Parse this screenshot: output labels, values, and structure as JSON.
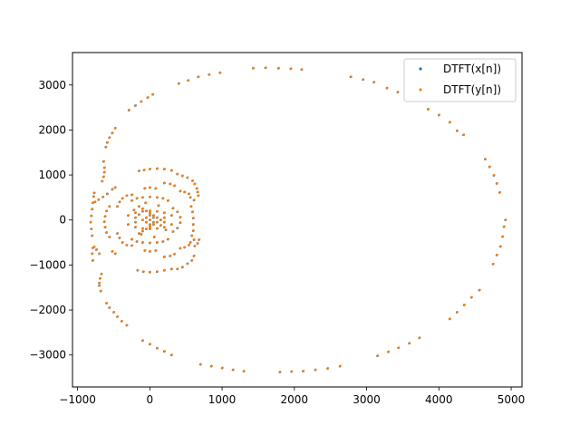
{
  "chart_data": {
    "type": "scatter",
    "title": "",
    "xlabel": "",
    "ylabel": "",
    "xlim": [
      -1070,
      5150
    ],
    "ylim": [
      -3710,
      3720
    ],
    "xticks": [
      -1000,
      0,
      1000,
      2000,
      3000,
      4000,
      5000
    ],
    "yticks": [
      -3000,
      -2000,
      -1000,
      0,
      1000,
      2000,
      3000
    ],
    "grid": false,
    "legend_position": "top-right",
    "series": [
      {
        "name": "DTFT(x[n])",
        "color": "#1f77b4",
        "points": [
          [
            1430,
            3370
          ],
          [
            1600,
            3380
          ],
          [
            1780,
            3370
          ],
          [
            1950,
            3360
          ],
          [
            2100,
            3340
          ],
          [
            2780,
            3180
          ],
          [
            2950,
            3120
          ],
          [
            3100,
            3060
          ],
          [
            3280,
            2930
          ],
          [
            3430,
            2840
          ],
          [
            3850,
            2460
          ],
          [
            4000,
            2330
          ],
          [
            4150,
            2170
          ],
          [
            4250,
            1980
          ],
          [
            4340,
            1890
          ],
          [
            4640,
            1350
          ],
          [
            4700,
            1180
          ],
          [
            4760,
            990
          ],
          [
            4800,
            810
          ],
          [
            4840,
            610
          ],
          [
            4920,
            0
          ],
          [
            4900,
            -150
          ],
          [
            4880,
            -370
          ],
          [
            4850,
            -590
          ],
          [
            4800,
            -780
          ],
          [
            4750,
            -980
          ],
          [
            4560,
            -1560
          ],
          [
            4450,
            -1720
          ],
          [
            4350,
            -1890
          ],
          [
            4250,
            -2050
          ],
          [
            4150,
            -2200
          ],
          [
            3730,
            -2620
          ],
          [
            3590,
            -2740
          ],
          [
            3440,
            -2840
          ],
          [
            3300,
            -2930
          ],
          [
            3150,
            -3020
          ],
          [
            2630,
            -3250
          ],
          [
            2460,
            -3300
          ],
          [
            2290,
            -3330
          ],
          [
            2120,
            -3360
          ],
          [
            1960,
            -3370
          ],
          [
            1800,
            -3380
          ],
          [
            1300,
            -3360
          ],
          [
            1150,
            -3330
          ],
          [
            1000,
            -3290
          ],
          [
            850,
            -3250
          ],
          [
            700,
            -3210
          ],
          [
            300,
            -3000
          ],
          [
            200,
            -2920
          ],
          [
            100,
            -2850
          ],
          [
            0,
            -2760
          ],
          [
            -100,
            -2680
          ],
          [
            -320,
            -2340
          ],
          [
            -390,
            -2250
          ],
          [
            -450,
            -2150
          ],
          [
            -500,
            -2050
          ],
          [
            -560,
            -1950
          ],
          [
            -600,
            -1850
          ],
          [
            -680,
            -1580
          ],
          [
            -700,
            -1460
          ],
          [
            -700,
            -1400
          ],
          [
            -690,
            -1300
          ],
          [
            -670,
            -1200
          ],
          [
            -790,
            -900
          ],
          [
            -800,
            -750
          ],
          [
            -790,
            -620
          ],
          [
            -770,
            -600
          ],
          [
            -740,
            -660
          ],
          [
            -700,
            -750
          ],
          [
            -800,
            -350
          ],
          [
            -810,
            -200
          ],
          [
            -820,
            -50
          ],
          [
            -810,
            90
          ],
          [
            -800,
            240
          ],
          [
            -790,
            380
          ],
          [
            -780,
            520
          ],
          [
            -770,
            600
          ],
          [
            -760,
            400
          ],
          [
            -710,
            450
          ],
          [
            -650,
            510
          ],
          [
            -590,
            580
          ],
          [
            -660,
            860
          ],
          [
            -640,
            960
          ],
          [
            -630,
            1060
          ],
          [
            -630,
            1160
          ],
          [
            -640,
            1300
          ],
          [
            -610,
            1620
          ],
          [
            -590,
            1720
          ],
          [
            -560,
            1830
          ],
          [
            -520,
            1930
          ],
          [
            -480,
            2040
          ],
          [
            -290,
            2440
          ],
          [
            -200,
            2540
          ],
          [
            -120,
            2630
          ],
          [
            -30,
            2720
          ],
          [
            40,
            2790
          ],
          [
            400,
            3030
          ],
          [
            530,
            3100
          ],
          [
            670,
            3180
          ],
          [
            820,
            3230
          ],
          [
            970,
            3270
          ],
          [
            -150,
            1090
          ],
          [
            -80,
            1110
          ],
          [
            0,
            1130
          ],
          [
            100,
            1140
          ],
          [
            200,
            1130
          ],
          [
            300,
            1100
          ],
          [
            -170,
            -1120
          ],
          [
            -90,
            -1150
          ],
          [
            0,
            -1160
          ],
          [
            100,
            -1150
          ],
          [
            200,
            -1120
          ],
          [
            300,
            -1090
          ],
          [
            380,
            -1090
          ],
          [
            450,
            -1050
          ],
          [
            520,
            -970
          ],
          [
            580,
            -900
          ],
          [
            610,
            -800
          ],
          [
            380,
            1020
          ],
          [
            450,
            980
          ],
          [
            520,
            940
          ],
          [
            590,
            870
          ],
          [
            620,
            800
          ],
          [
            -450,
            -300
          ],
          [
            -420,
            -400
          ],
          [
            -380,
            -500
          ],
          [
            -320,
            -560
          ],
          [
            -250,
            -570
          ],
          [
            -450,
            300
          ],
          [
            -420,
            400
          ],
          [
            -380,
            480
          ],
          [
            -320,
            540
          ],
          [
            -250,
            560
          ],
          [
            -560,
            -380
          ],
          [
            -600,
            -280
          ],
          [
            -620,
            -160
          ],
          [
            -630,
            -40
          ],
          [
            -620,
            80
          ],
          [
            -600,
            200
          ],
          [
            -560,
            300
          ],
          [
            -300,
            100
          ],
          [
            -200,
            160
          ],
          [
            -100,
            190
          ],
          [
            0,
            200
          ],
          [
            100,
            190
          ],
          [
            200,
            160
          ],
          [
            300,
            100
          ],
          [
            -300,
            -100
          ],
          [
            -200,
            -160
          ],
          [
            -100,
            -190
          ],
          [
            0,
            -200
          ],
          [
            100,
            -190
          ],
          [
            200,
            -160
          ],
          [
            300,
            -100
          ],
          [
            -250,
            430
          ],
          [
            -180,
            480
          ],
          [
            -100,
            500
          ],
          [
            0,
            510
          ],
          [
            100,
            500
          ],
          [
            180,
            480
          ],
          [
            250,
            430
          ],
          [
            -250,
            -430
          ],
          [
            -180,
            -480
          ],
          [
            -100,
            -500
          ],
          [
            0,
            -510
          ],
          [
            100,
            -500
          ],
          [
            180,
            -480
          ],
          [
            250,
            -430
          ],
          [
            -150,
            -300
          ],
          [
            -100,
            -250
          ],
          [
            -50,
            -200
          ],
          [
            0,
            -150
          ],
          [
            50,
            -100
          ],
          [
            100,
            -50
          ],
          [
            150,
            0
          ],
          [
            -150,
            300
          ],
          [
            -100,
            250
          ],
          [
            -50,
            200
          ],
          [
            0,
            150
          ],
          [
            50,
            100
          ],
          [
            100,
            50
          ],
          [
            -100,
            0
          ],
          [
            -50,
            50
          ],
          [
            -50,
            -50
          ],
          [
            0,
            0
          ],
          [
            50,
            -50
          ],
          [
            50,
            50
          ],
          [
            0,
            100
          ],
          [
            0,
            -100
          ],
          [
            -200,
            -50
          ],
          [
            -200,
            50
          ],
          [
            200,
            -50
          ],
          [
            200,
            50
          ],
          [
            -150,
            120
          ],
          [
            150,
            -120
          ],
          [
            -120,
            -320
          ],
          [
            120,
            320
          ],
          [
            -220,
            220
          ],
          [
            220,
            -220
          ],
          [
            -60,
            380
          ],
          [
            60,
            -380
          ],
          [
            320,
            -260
          ],
          [
            380,
            -180
          ],
          [
            420,
            -60
          ],
          [
            420,
            60
          ],
          [
            380,
            180
          ],
          [
            320,
            260
          ],
          [
            580,
            -350
          ],
          [
            600,
            -240
          ],
          [
            600,
            -100
          ],
          [
            600,
            40
          ],
          [
            590,
            180
          ],
          [
            570,
            300
          ],
          [
            620,
            -580
          ],
          [
            660,
            -520
          ],
          [
            680,
            -440
          ],
          [
            670,
            540
          ],
          [
            660,
            620
          ],
          [
            650,
            700
          ],
          [
            420,
            -630
          ],
          [
            480,
            -610
          ],
          [
            540,
            -560
          ],
          [
            420,
            640
          ],
          [
            480,
            620
          ],
          [
            540,
            580
          ],
          [
            -70,
            -680
          ],
          [
            0,
            -700
          ],
          [
            80,
            -680
          ],
          [
            -70,
            700
          ],
          [
            0,
            720
          ],
          [
            80,
            700
          ],
          [
            200,
            -820
          ],
          [
            280,
            -800
          ],
          [
            340,
            -760
          ],
          [
            200,
            820
          ],
          [
            280,
            800
          ],
          [
            340,
            760
          ],
          [
            -480,
            -750
          ],
          [
            -520,
            -700
          ],
          [
            -480,
            720
          ],
          [
            -520,
            680
          ],
          [
            560,
            -500
          ],
          [
            610,
            -440
          ],
          [
            560,
            500
          ],
          [
            610,
            440
          ]
        ]
      },
      {
        "name": "DTFT(y[n])",
        "color": "#ff7f0e",
        "same_as_series": 0
      }
    ]
  }
}
